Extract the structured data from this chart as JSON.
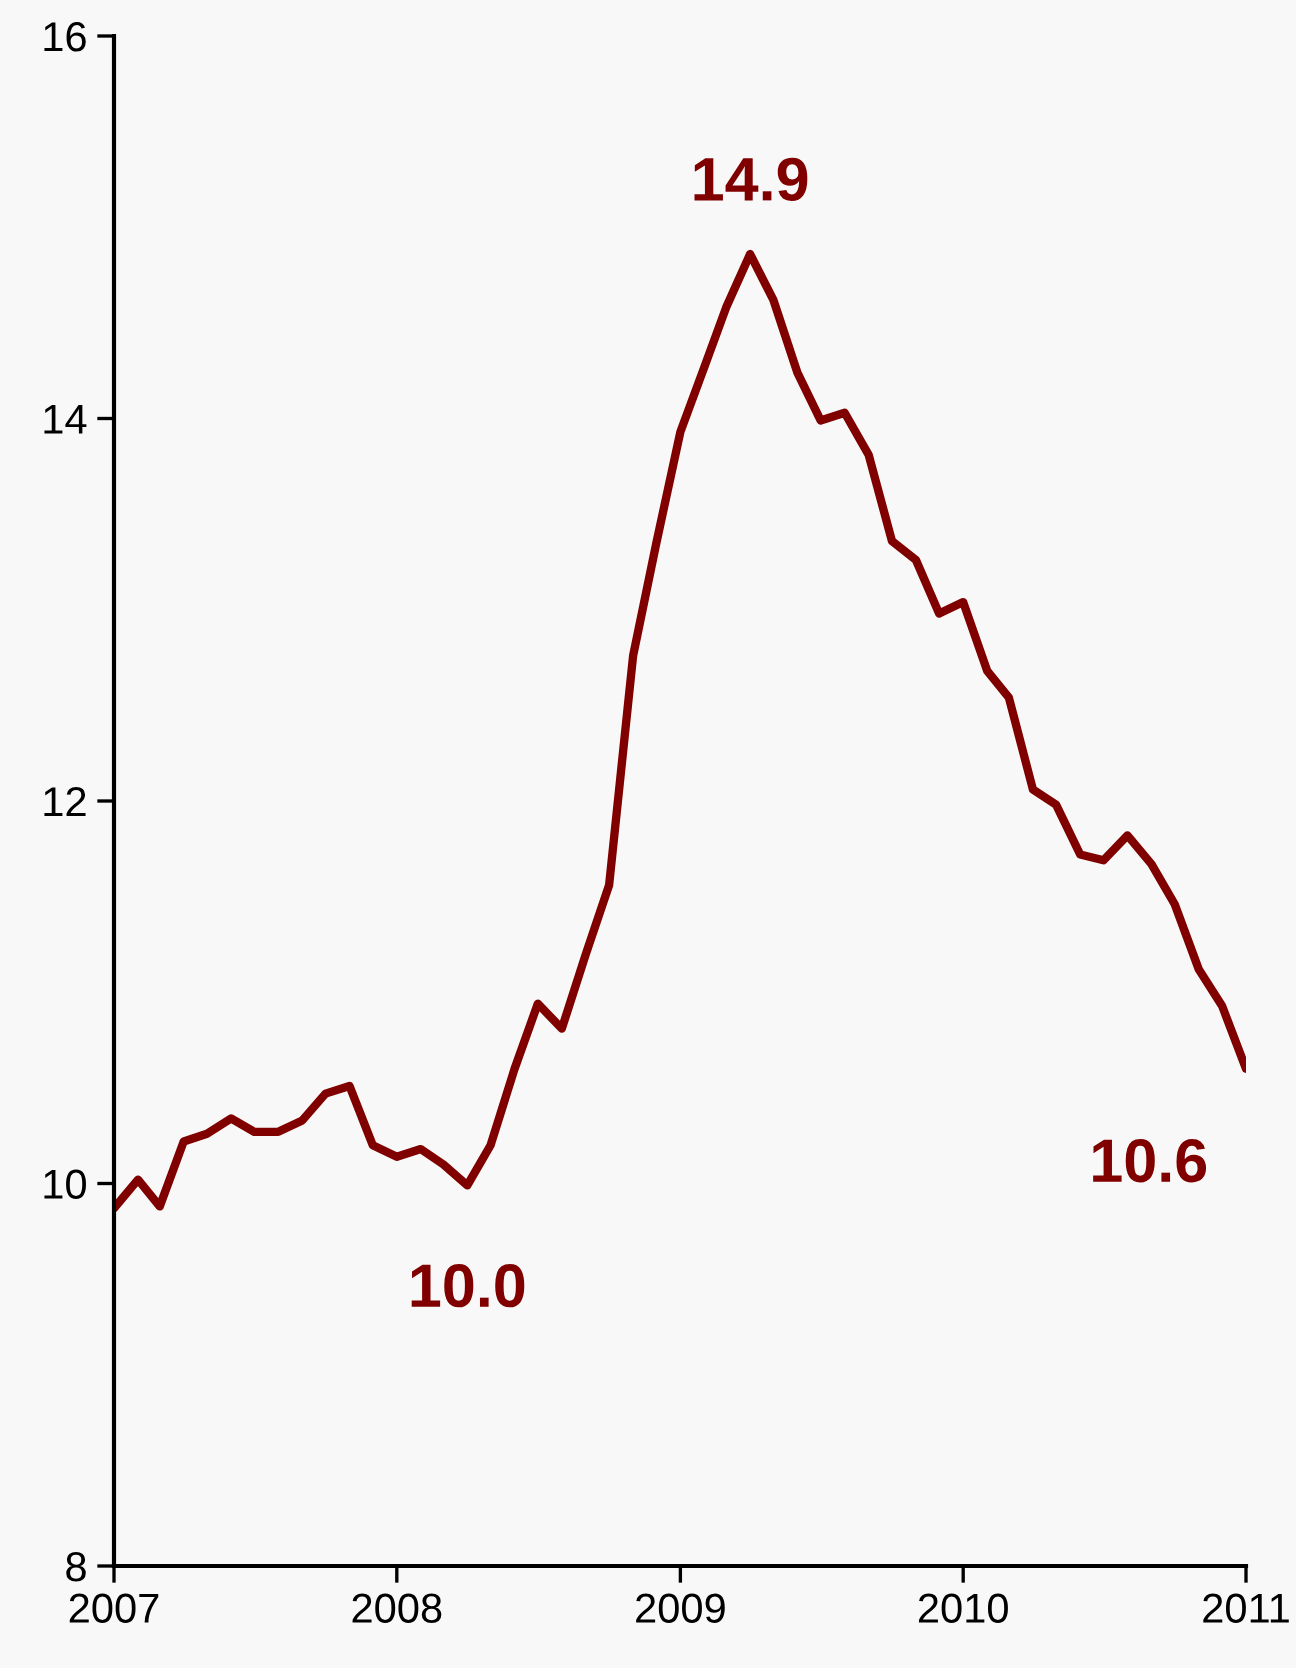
{
  "chart_data": {
    "type": "line",
    "color": "#800000",
    "x": [
      "2007-01",
      "2007-02",
      "2007-03",
      "2007-04",
      "2007-05",
      "2007-06",
      "2007-07",
      "2007-08",
      "2007-09",
      "2007-10",
      "2007-11",
      "2007-12",
      "2008-01",
      "2008-02",
      "2008-03",
      "2008-04",
      "2008-05",
      "2008-06",
      "2008-07",
      "2008-08",
      "2008-09",
      "2008-10",
      "2008-11",
      "2008-12",
      "2009-01",
      "2009-02",
      "2009-03",
      "2009-04",
      "2009-05",
      "2009-06",
      "2009-07",
      "2009-08",
      "2009-09",
      "2009-10",
      "2009-11",
      "2009-12",
      "2010-01",
      "2010-02",
      "2010-03",
      "2010-04",
      "2010-05",
      "2010-06",
      "2010-07",
      "2010-08",
      "2010-09",
      "2010-10",
      "2010-11",
      "2010-12",
      "2011-01"
    ],
    "values": [
      9.87,
      10.02,
      9.88,
      10.22,
      10.26,
      10.34,
      10.27,
      10.27,
      10.33,
      10.47,
      10.51,
      10.2,
      10.14,
      10.18,
      10.1,
      9.99,
      10.2,
      10.6,
      10.94,
      10.81,
      11.2,
      11.56,
      12.76,
      13.35,
      13.93,
      14.27,
      14.58,
      14.86,
      14.62,
      14.24,
      13.99,
      14.03,
      13.81,
      13.36,
      13.26,
      12.98,
      13.04,
      12.68,
      12.54,
      12.06,
      11.98,
      11.72,
      11.69,
      11.82,
      11.67,
      11.46,
      11.12,
      10.93,
      10.6
    ],
    "xlim": [
      "2007-01",
      "2011-01"
    ],
    "xticks": [
      {
        "value": "2007-01",
        "label": "2007"
      },
      {
        "value": "2008-01",
        "label": "2008"
      },
      {
        "value": "2009-01",
        "label": "2009"
      },
      {
        "value": "2010-01",
        "label": "2010"
      },
      {
        "value": "2011-01",
        "label": "2011"
      }
    ],
    "ylim": [
      8,
      16
    ],
    "yticks": [
      8,
      10,
      12,
      14,
      16
    ],
    "annotations": [
      {
        "text": "10.0",
        "x": "2008-04",
        "y": 9.99
      },
      {
        "text": "14.9",
        "x": "2009-04",
        "y": 14.86
      },
      {
        "text": "10.6",
        "x": "2011-01",
        "y": 10.6
      }
    ]
  }
}
